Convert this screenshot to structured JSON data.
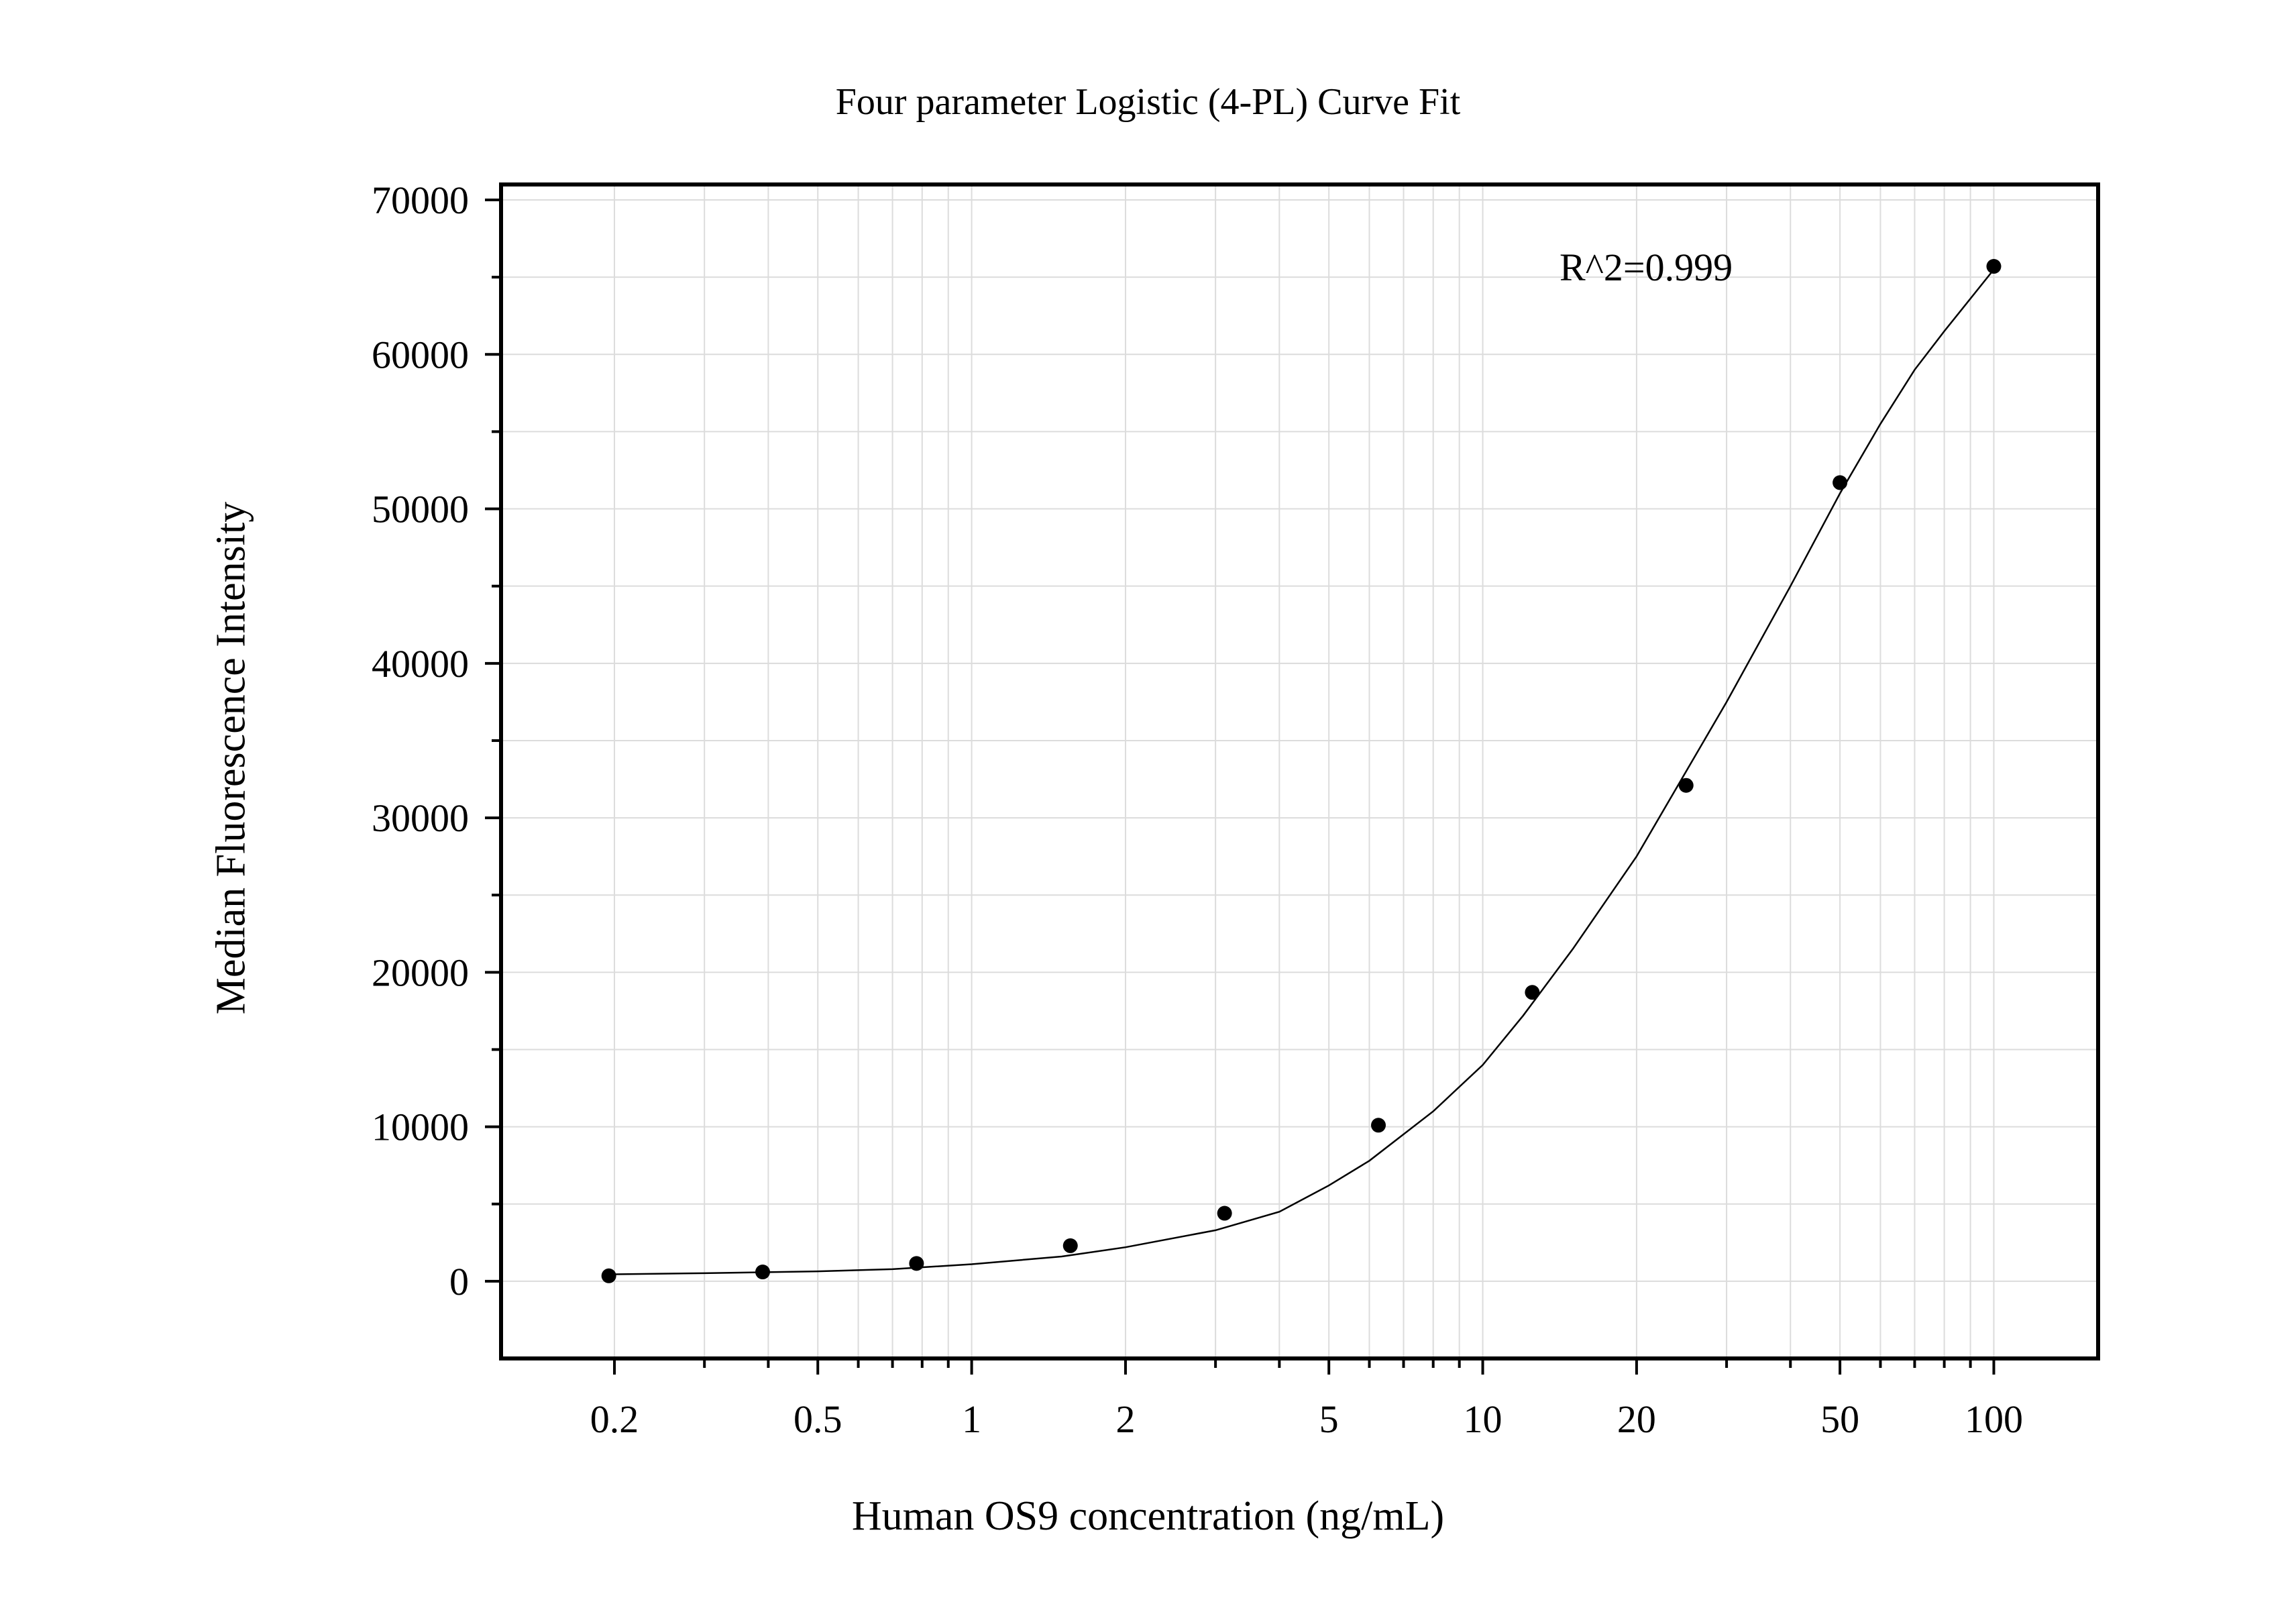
{
  "chart_data": {
    "type": "scatter",
    "title": "Four parameter Logistic (4-PL) Curve Fit",
    "xlabel": "Human OS9 concentration (ng/mL)",
    "ylabel": "Median Fluorescence Intensity",
    "xscale": "log",
    "xlim": [
      0.12,
      160
    ],
    "ylim": [
      -5000,
      71000
    ],
    "xticks": [
      0.2,
      0.5,
      1,
      2,
      5,
      10,
      20,
      50,
      100
    ],
    "xtick_labels": [
      "0.2",
      "0.5",
      "1",
      "2",
      "5",
      "10",
      "20",
      "50",
      "100"
    ],
    "yticks": [
      0,
      10000,
      20000,
      30000,
      40000,
      50000,
      60000,
      70000
    ],
    "ytick_labels": [
      "0",
      "10000",
      "20000",
      "30000",
      "40000",
      "50000",
      "60000",
      "70000"
    ],
    "grid": true,
    "annotation": "R^2=0.999",
    "points": {
      "x": [
        0.195,
        0.39,
        0.78,
        1.56,
        3.125,
        6.25,
        12.5,
        25,
        50,
        100
      ],
      "y": [
        350,
        600,
        1150,
        2300,
        4400,
        10100,
        18700,
        32100,
        51700,
        65700
      ]
    },
    "fit_curve": {
      "x": [
        0.2,
        0.3,
        0.5,
        0.7,
        1,
        1.5,
        2,
        3,
        4,
        5,
        6,
        8,
        10,
        12,
        15,
        20,
        25,
        30,
        40,
        50,
        60,
        70,
        80,
        100
      ],
      "y": [
        450,
        520,
        640,
        780,
        1100,
        1600,
        2200,
        3300,
        4500,
        6200,
        7800,
        11000,
        14000,
        17200,
        21500,
        27500,
        33000,
        37500,
        45000,
        51000,
        55500,
        59000,
        61500,
        65500
      ]
    },
    "colors": {
      "axis": "#000000",
      "grid": "#dcdcdc",
      "marker": "#000000",
      "line": "#000000"
    }
  }
}
